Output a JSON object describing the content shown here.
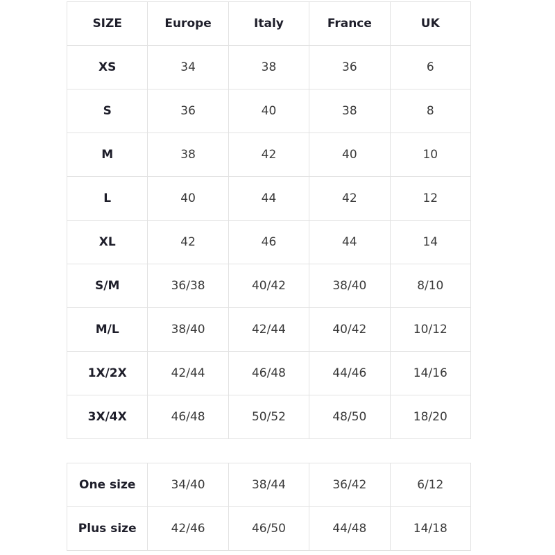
{
  "main_table": {
    "headers": [
      "SIZE",
      "Europe",
      "Italy",
      "France",
      "UK"
    ],
    "rows": [
      [
        "XS",
        "34",
        "38",
        "36",
        "6"
      ],
      [
        "S",
        "36",
        "40",
        "38",
        "8"
      ],
      [
        "M",
        "38",
        "42",
        "40",
        "10"
      ],
      [
        "L",
        "40",
        "44",
        "42",
        "12"
      ],
      [
        "XL",
        "42",
        "46",
        "44",
        "14"
      ],
      [
        "S/M",
        "36/38",
        "40/42",
        "38/40",
        "8/10"
      ],
      [
        "M/L",
        "38/40",
        "42/44",
        "40/42",
        "10/12"
      ],
      [
        "1X/2X",
        "42/44",
        "46/48",
        "44/46",
        "14/16"
      ],
      [
        "3X/4X",
        "46/48",
        "50/52",
        "48/50",
        "18/20"
      ]
    ]
  },
  "secondary_table": {
    "rows": [
      [
        "One size",
        "34/40",
        "38/44",
        "36/42",
        "6/12"
      ],
      [
        "Plus size",
        "42/46",
        "46/50",
        "44/48",
        "14/18"
      ]
    ]
  }
}
